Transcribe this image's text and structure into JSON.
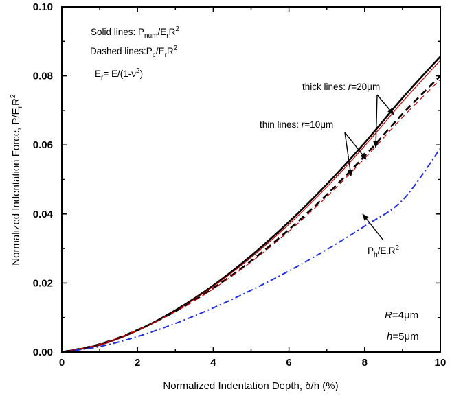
{
  "chart_data": {
    "type": "line",
    "xlabel": "Normalized Indentation Depth, δ/h (%)",
    "ylabel": "Normalized Indentation Force, P/E",
    "ylabel_sub": "r",
    "ylabel_tail": "R",
    "ylabel_sup": "2",
    "xlim": [
      0,
      10
    ],
    "ylim": [
      0,
      0.1
    ],
    "xticks": [
      "0",
      "2",
      "4",
      "6",
      "8",
      "10"
    ],
    "yticks": [
      "0.00",
      "0.02",
      "0.04",
      "0.06",
      "0.08",
      "0.10"
    ],
    "x": [
      0,
      1,
      2,
      3,
      4,
      5,
      6,
      7,
      8,
      9,
      10
    ],
    "series": [
      {
        "style": "solid-thick",
        "color": "#000000",
        "values": [
          0,
          0.0021,
          0.0063,
          0.0121,
          0.0193,
          0.0279,
          0.0377,
          0.0486,
          0.0606,
          0.0736,
          0.0856
        ]
      },
      {
        "style": "solid-thin",
        "color": "#cc0000",
        "values": [
          0,
          0.002,
          0.0062,
          0.0119,
          0.019,
          0.0274,
          0.037,
          0.0478,
          0.0597,
          0.0725,
          0.0845
        ]
      },
      {
        "style": "dashed-thick",
        "color": "#000000",
        "values": [
          0,
          0.0023,
          0.0064,
          0.0118,
          0.0185,
          0.0264,
          0.0355,
          0.0456,
          0.0568,
          0.069,
          0.08
        ]
      },
      {
        "style": "dashed-thin",
        "color": "#cc0000",
        "values": [
          0,
          0.0023,
          0.0064,
          0.0117,
          0.0183,
          0.0261,
          0.035,
          0.045,
          0.0561,
          0.068,
          0.079
        ]
      },
      {
        "style": "dashdot",
        "color": "#1f2fe0",
        "values": [
          0,
          0.0016,
          0.0045,
          0.0083,
          0.0128,
          0.0179,
          0.0235,
          0.0297,
          0.0365,
          0.044,
          0.059
        ]
      }
    ],
    "annotations": {
      "solid_prefix": "Solid lines: P",
      "solid_sub1": "num",
      "solid_mid": "/E",
      "solid_sub2": "r",
      "solid_tail": "R",
      "solid_sup": "2",
      "dashed_prefix": "Dashed lines:P",
      "dashed_sub1": "c",
      "dashed_mid": "/E",
      "dashed_sub2": "r",
      "dashed_tail": "R",
      "dashed_sup": "2",
      "er_prefix": "E",
      "er_sub": "r",
      "er_mid": "= E/(1-ν",
      "er_sup": "2",
      "er_tail": ")",
      "thick_prefix": "thick lines: ",
      "thick_var": "r",
      "thick_value": "=20μm",
      "thin_prefix": "thin lines: ",
      "thin_var": "r",
      "thin_value": "=10μm",
      "ph_prefix": "P",
      "ph_sub1": "h",
      "ph_mid": "/E",
      "ph_sub2": "r",
      "ph_tail": "R",
      "ph_sup": "2",
      "R_var": "R",
      "R_value": "=4μm",
      "h_var": "h",
      "h_value": "=5μm"
    }
  }
}
